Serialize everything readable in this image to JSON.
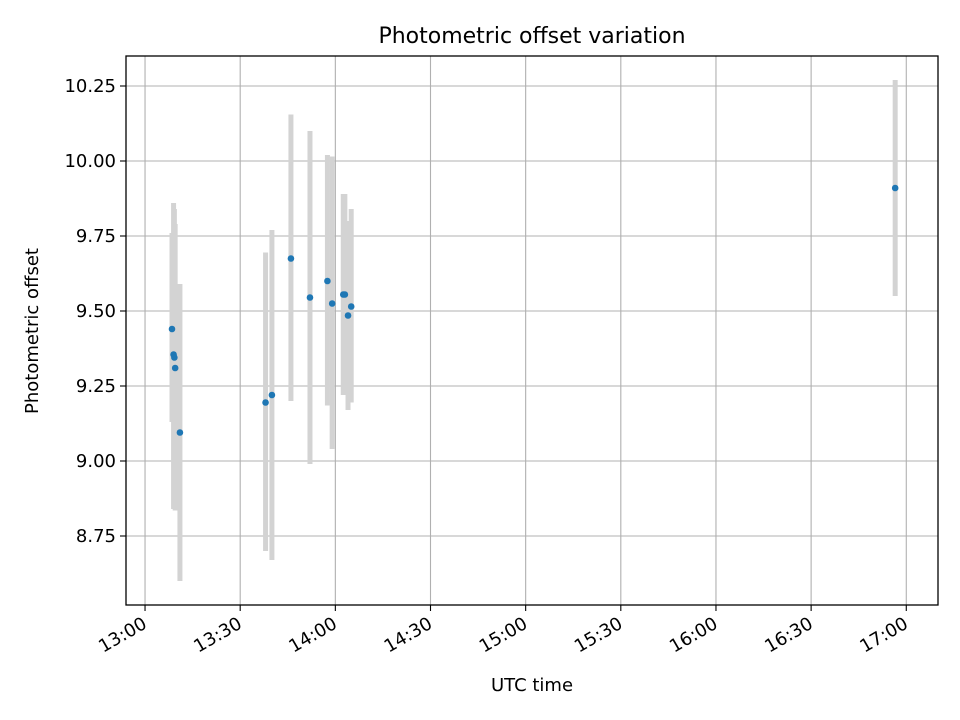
{
  "chart_data": {
    "type": "scatter",
    "title": "Photometric offset variation",
    "xlabel": "UTC time",
    "ylabel": "Photometric offset",
    "x_is_time": true,
    "xlim": [
      "12:54",
      "17:10"
    ],
    "ylim": [
      8.52,
      10.35
    ],
    "xticks": [
      "13:00",
      "13:30",
      "14:00",
      "14:30",
      "15:00",
      "15:30",
      "16:00",
      "16:30",
      "17:00"
    ],
    "yticks": [
      "8.75",
      "9.00",
      "9.25",
      "9.50",
      "9.75",
      "10.00",
      "10.25"
    ],
    "grid": true,
    "marker_color": "#1f77b4",
    "errorbar_color": "#d3d3d3",
    "points": [
      {
        "x": "13:08:30",
        "y": 9.44,
        "ylow": 9.13,
        "yhigh": 9.76
      },
      {
        "x": "13:09:00",
        "y": 9.355,
        "ylow": 8.84,
        "yhigh": 9.86
      },
      {
        "x": "13:09:15",
        "y": 9.345,
        "ylow": 8.84,
        "yhigh": 9.84
      },
      {
        "x": "13:09:30",
        "y": 9.31,
        "ylow": 8.835,
        "yhigh": 9.79
      },
      {
        "x": "13:11:00",
        "y": 9.095,
        "ylow": 8.6,
        "yhigh": 9.59
      },
      {
        "x": "13:38:00",
        "y": 9.195,
        "ylow": 8.7,
        "yhigh": 9.695
      },
      {
        "x": "13:40:00",
        "y": 9.22,
        "ylow": 8.67,
        "yhigh": 9.77
      },
      {
        "x": "13:46:00",
        "y": 9.675,
        "ylow": 9.2,
        "yhigh": 10.155
      },
      {
        "x": "13:52:00",
        "y": 9.545,
        "ylow": 8.99,
        "yhigh": 10.1
      },
      {
        "x": "13:57:30",
        "y": 9.6,
        "ylow": 9.185,
        "yhigh": 10.02
      },
      {
        "x": "13:59:00",
        "y": 9.525,
        "ylow": 9.04,
        "yhigh": 10.015
      },
      {
        "x": "14:02:30",
        "y": 9.555,
        "ylow": 9.22,
        "yhigh": 9.89
      },
      {
        "x": "14:03:00",
        "y": 9.555,
        "ylow": 9.22,
        "yhigh": 9.89
      },
      {
        "x": "14:04:00",
        "y": 9.485,
        "ylow": 9.17,
        "yhigh": 9.8
      },
      {
        "x": "14:05:00",
        "y": 9.515,
        "ylow": 9.195,
        "yhigh": 9.84
      },
      {
        "x": "16:56:30",
        "y": 9.91,
        "ylow": 9.55,
        "yhigh": 10.27
      }
    ]
  }
}
